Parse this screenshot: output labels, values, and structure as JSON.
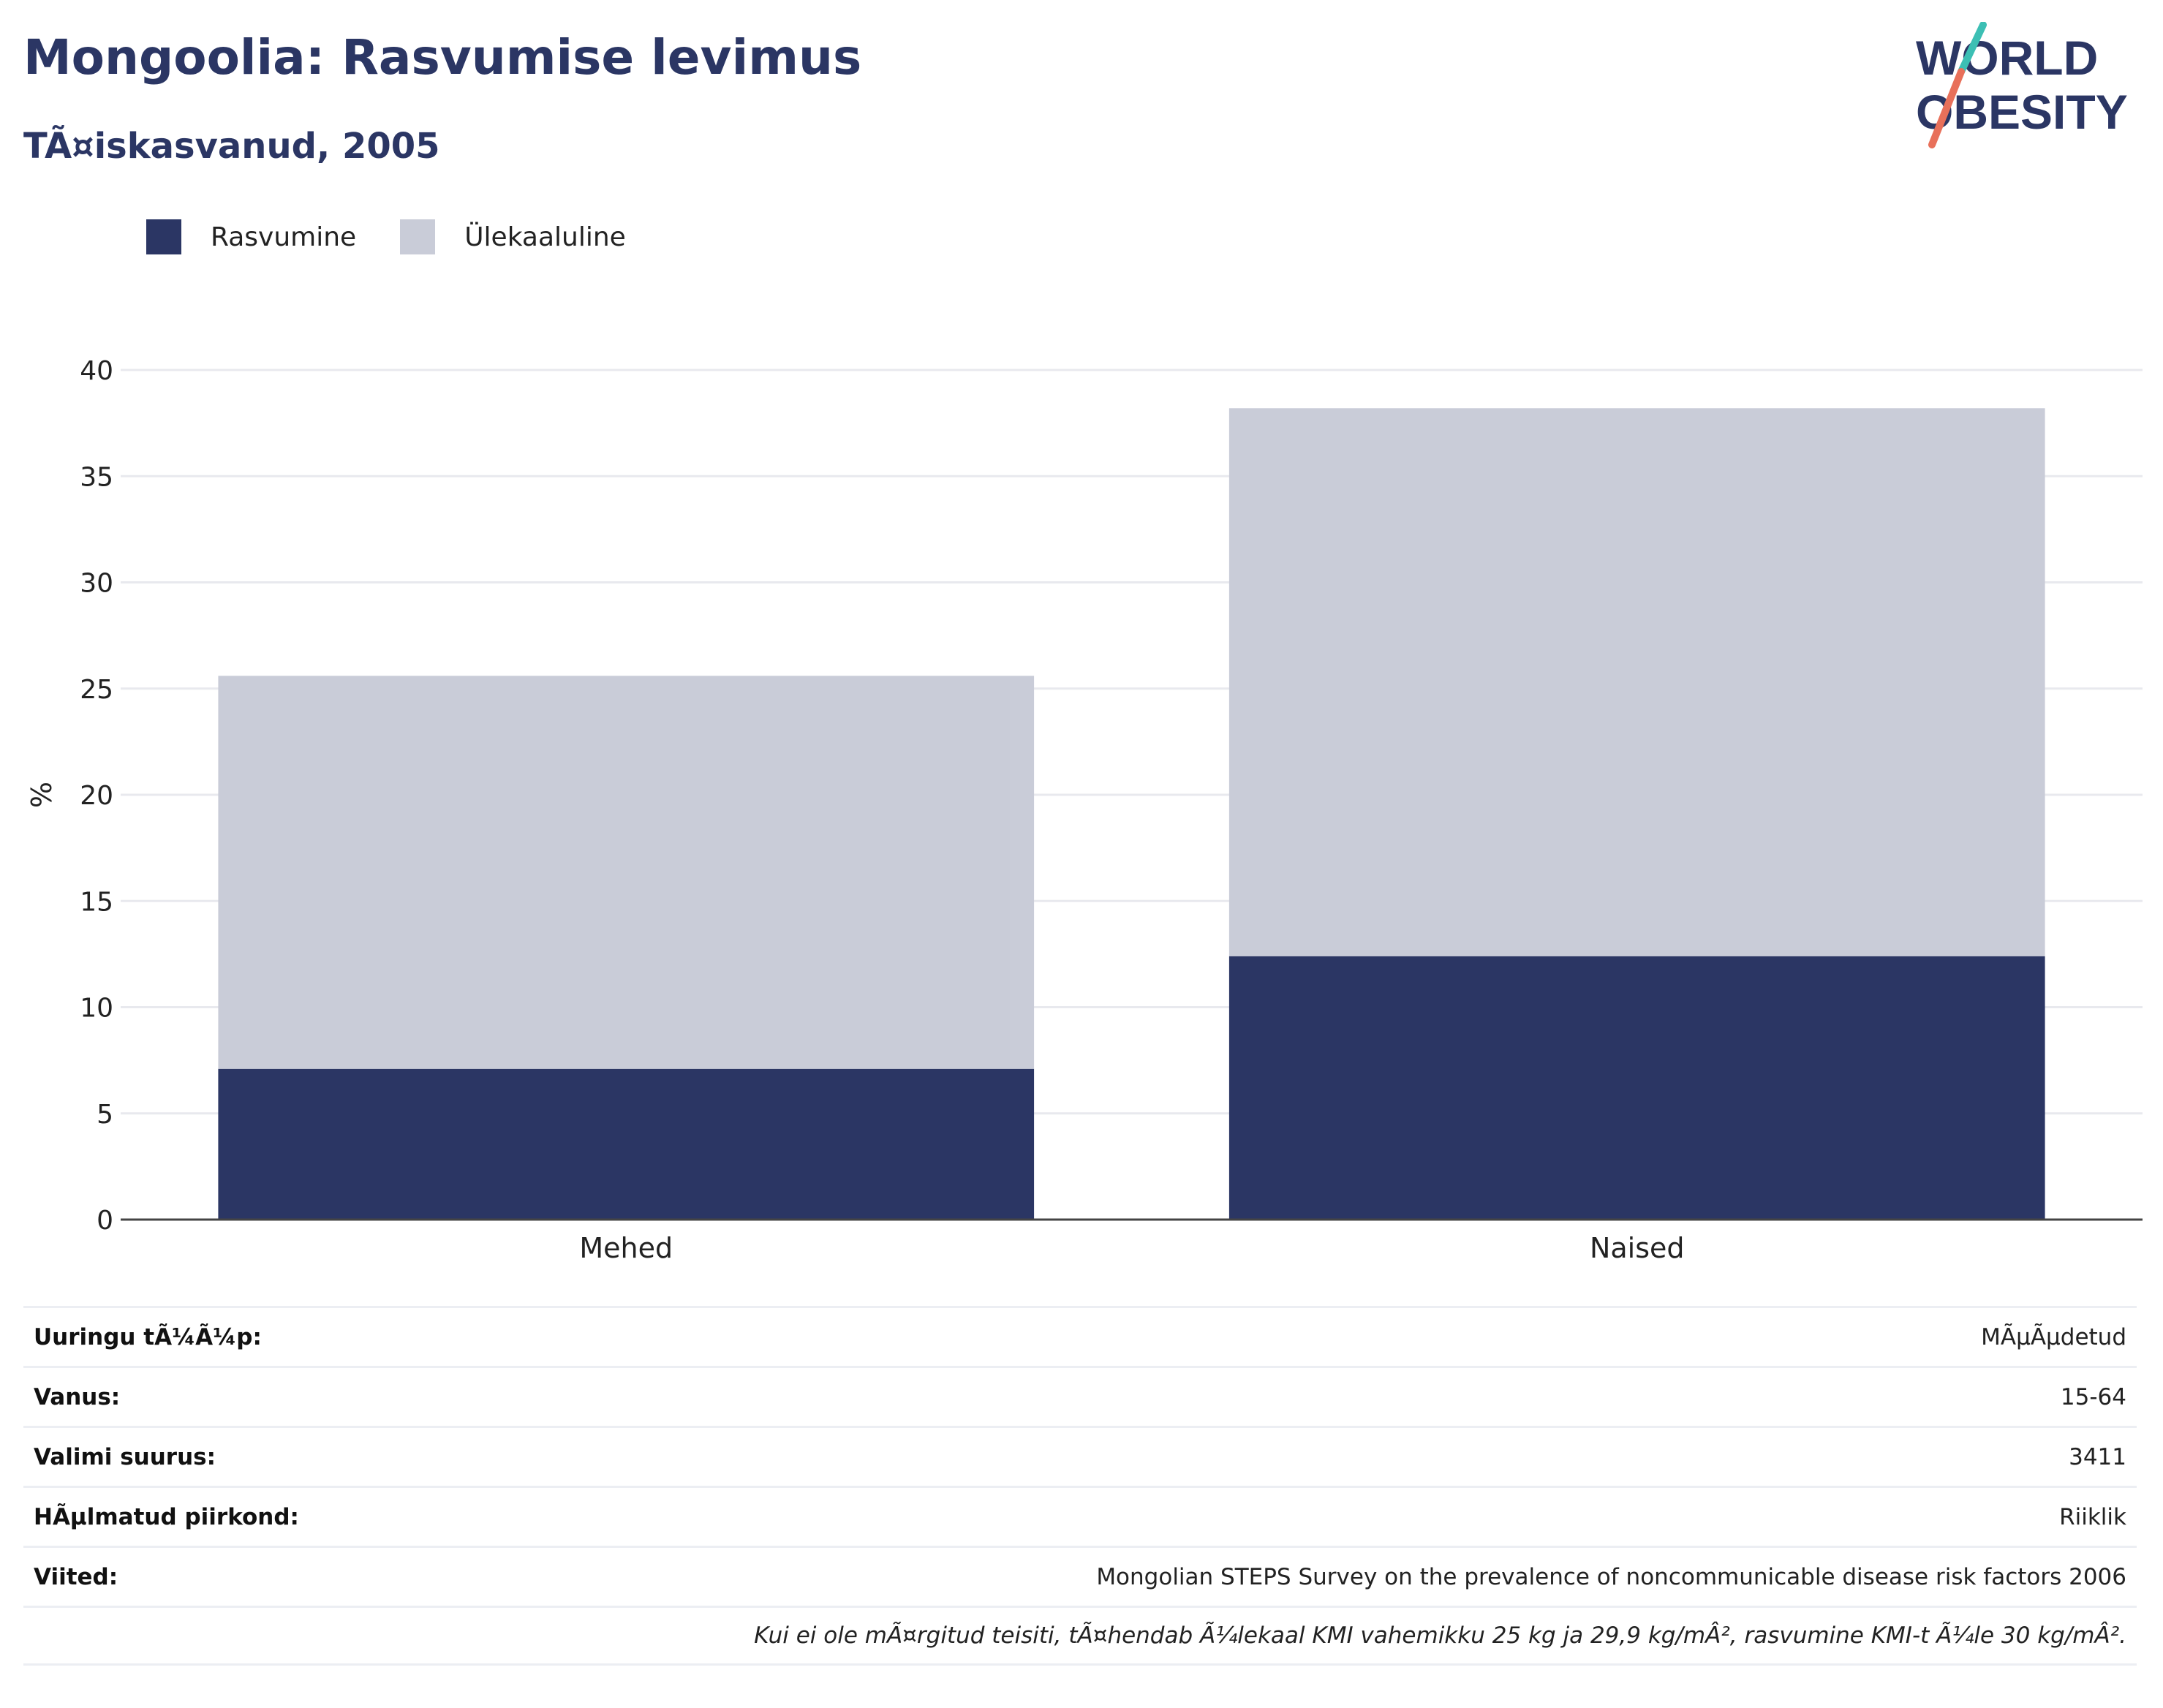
{
  "header": {
    "title": "Mongoolia: Rasvumise levimus",
    "subtitle": "TÃ¤iskasvanud, 2005"
  },
  "logo": {
    "line1": "WORLD",
    "line2": "OBESITY"
  },
  "colors": {
    "obesity": "#2b3664",
    "overweight": "#c9ccd8",
    "title": "#2b3664",
    "logo_teal": "#3cbfb4",
    "logo_coral": "#e8705a"
  },
  "legend": [
    {
      "label": "Rasvumine",
      "color": "#2b3664"
    },
    {
      "label": "Ülekaaluline",
      "color": "#c9ccd8"
    }
  ],
  "chart_data": {
    "type": "bar",
    "stacked": true,
    "categories": [
      "Mehed",
      "Naised"
    ],
    "series": [
      {
        "name": "Rasvumine",
        "values": [
          7.1,
          12.4
        ]
      },
      {
        "name": "Ülekaaluline",
        "values": [
          18.5,
          25.8
        ]
      }
    ],
    "ylabel": "%",
    "ylim": [
      0,
      40
    ],
    "yticks": [
      0,
      5,
      10,
      15,
      20,
      25,
      30,
      35,
      40
    ],
    "grid": true,
    "legend_position": "top-left"
  },
  "info_table": [
    {
      "label": "Uuringu tÃ¼Ã¼p:",
      "value": "MÃµÃµdetud"
    },
    {
      "label": "Vanus:",
      "value": "15-64"
    },
    {
      "label": "Valimi suurus:",
      "value": "3411"
    },
    {
      "label": "HÃµlmatud piirkond:",
      "value": "Riiklik"
    },
    {
      "label": "Viited:",
      "value": "Mongolian STEPS Survey on the prevalence of noncommunicable disease risk factors 2006"
    }
  ],
  "note": "Kui ei ole mÃ¤rgitud teisiti, tÃ¤hendab Ã¼lekaal KMI vahemikku 25 kg ja 29,9 kg/mÂ², rasvumine KMI-t Ã¼le 30 kg/mÂ²."
}
